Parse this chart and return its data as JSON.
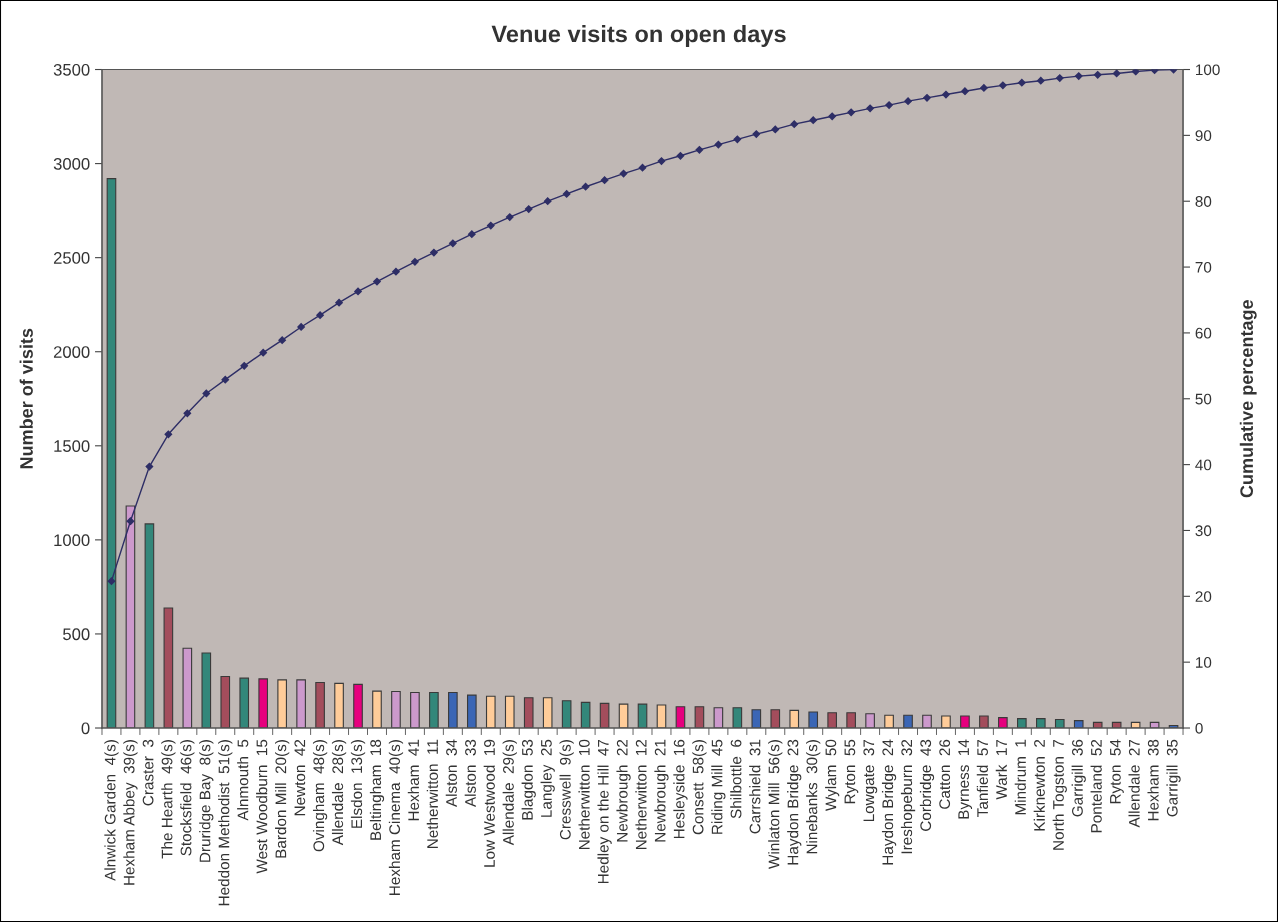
{
  "chart_data": {
    "type": "bar",
    "title": "Venue visits on open days",
    "ylabel": "Number of visits",
    "y2label": "Cumulative percentage",
    "categories": [
      "Alnwick Garden  4(s)",
      "Hexham Abbey  39(s)",
      "Craster  3",
      "The Hearth  49(s)",
      "Stocksfield  46(s)",
      "Druridge Bay  8(s)",
      "Heddon Methodist  51(s)",
      "Alnmouth  5",
      "West Woodburn  15",
      "Bardon Mill  20(s)",
      "Newton  42",
      "Ovingham  48(s)",
      "Allendale  28(s)",
      "Elsdon  13(s)",
      "Beltingham  18",
      "Hexham Cinema  40(s)",
      "Hexham  41",
      "Netherwitton  11",
      "Alston  34",
      "Alston  33",
      "Low Westwood  19",
      "Allendale  29(s)",
      "Blagdon  53",
      "Langley  25",
      "Cresswell  9(s)",
      "Netherwitton  10",
      "Hedley on the Hill  47",
      "Newbrough  22",
      "Netherwitton  12",
      "Newbrough  21",
      "Hesleyside  16",
      "Consett  58(s)",
      "Riding Mill  45",
      "Shilbottle  6",
      "Carrshield  31",
      "Winlaton Mill  56(s)",
      "Haydon Bridge  23",
      "Ninebanks  30(s)",
      "Wylam  50",
      "Ryton  55",
      "Lowgate  37",
      "Haydon Bridge  24",
      "Ireshopeburn  32",
      "Corbridge  43",
      "Catton  26",
      "Byrness  14",
      "Tanfield  57",
      "Wark  17",
      "Mindrum  1",
      "Kirknewton  2",
      "North Togston  7",
      "Garrigill  36",
      "Ponteland  52",
      "Ryton  54",
      "Allendale  27",
      "Hexham  38",
      "Garrigill  35"
    ],
    "series": [
      {
        "values": [
          2920,
          1180,
          1085,
          638,
          424,
          399,
          274,
          265,
          261,
          256,
          256,
          242,
          237,
          232,
          196,
          194,
          189,
          189,
          189,
          175,
          169,
          169,
          161,
          161,
          145,
          136,
          131,
          127,
          127,
          122,
          113,
          113,
          108,
          108,
          97,
          97,
          94,
          85,
          81,
          81,
          76,
          68,
          68,
          68,
          64,
          64,
          64,
          55,
          50,
          50,
          45,
          39,
          30,
          30,
          30,
          30,
          13
        ],
        "colors": [
          "#33877a",
          "#cc99cc",
          "#33877a",
          "#a34d5c",
          "#cc99cc",
          "#33877a",
          "#a34d5c",
          "#33877a",
          "#e6007e",
          "#ffcc99",
          "#cc99cc",
          "#a34d5c",
          "#ffcc99",
          "#e6007e",
          "#ffcc99",
          "#cc99cc",
          "#cc99cc",
          "#33877a",
          "#3b66b5",
          "#3b66b5",
          "#ffcc99",
          "#ffcc99",
          "#a34d5c",
          "#ffcc99",
          "#33877a",
          "#33877a",
          "#a34d5c",
          "#ffcc99",
          "#33877a",
          "#ffcc99",
          "#e6007e",
          "#a34d5c",
          "#cc99cc",
          "#33877a",
          "#3b66b5",
          "#a34d5c",
          "#ffcc99",
          "#3b66b5",
          "#a34d5c",
          "#a34d5c",
          "#cc99cc",
          "#ffcc99",
          "#3b66b5",
          "#cc99cc",
          "#ffcc99",
          "#e6007e",
          "#a34d5c",
          "#e6007e",
          "#33877a",
          "#33877a",
          "#33877a",
          "#3b66b5",
          "#a34d5c",
          "#a34d5c",
          "#ffcc99",
          "#cc99cc",
          "#3b66b5"
        ]
      },
      {
        "type": "line",
        "axis": "y2",
        "color": "#2e2e66",
        "marker": "diamond",
        "line_style": "solid",
        "values": [
          22.3,
          31.4,
          39.7,
          44.6,
          47.8,
          50.8,
          52.9,
          55.0,
          57.0,
          58.9,
          60.9,
          62.7,
          64.6,
          66.3,
          67.8,
          69.3,
          70.8,
          72.2,
          73.6,
          75.0,
          76.3,
          77.6,
          78.8,
          80.0,
          81.1,
          82.2,
          83.2,
          84.2,
          85.1,
          86.1,
          86.9,
          87.8,
          88.6,
          89.4,
          90.2,
          90.9,
          91.7,
          92.3,
          92.9,
          93.5,
          94.1,
          94.6,
          95.2,
          95.7,
          96.2,
          96.7,
          97.2,
          97.6,
          98.0,
          98.3,
          98.7,
          99.0,
          99.2,
          99.4,
          99.7,
          99.9,
          100
        ]
      }
    ],
    "ylim": [
      0,
      3500
    ],
    "yticks": [
      0,
      500,
      1000,
      1500,
      2000,
      2500,
      3000,
      3500
    ],
    "y2lim": [
      0,
      100
    ],
    "y2ticks": [
      0,
      10,
      20,
      30,
      40,
      50,
      60,
      70,
      80,
      90,
      100
    ],
    "grid": false
  }
}
